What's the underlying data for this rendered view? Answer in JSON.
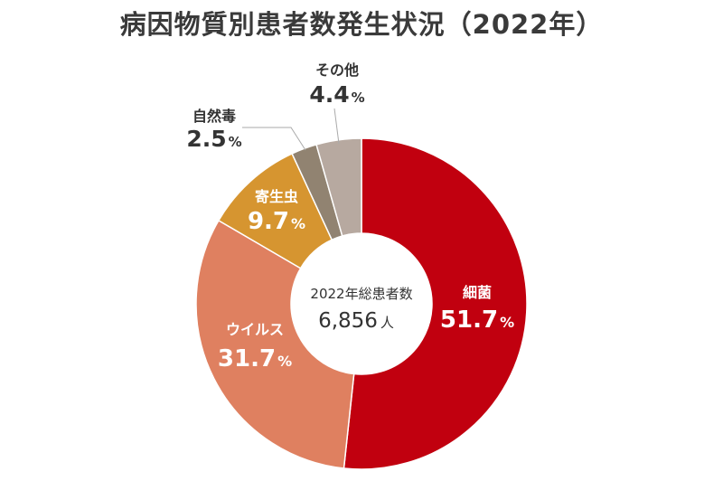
{
  "title": "病因物質別患者数発生状況（2022年）",
  "center": {
    "label": "2022年総患者数",
    "value": "6,856",
    "unit": "人"
  },
  "colors": {
    "bacteria": "#c1000f",
    "virus": "#df8060",
    "parasite": "#d69530",
    "natural_toxin": "#918371",
    "other": "#b7a9a0",
    "leader_line": "#aaaaaa",
    "text_dark": "#333333"
  },
  "chart_data": {
    "type": "pie",
    "title": "病因物質別患者数発生状況（2022年）",
    "unit": "%",
    "categories": [
      "細菌",
      "ウイルス",
      "寄生虫",
      "自然毒",
      "その他"
    ],
    "values": [
      51.7,
      31.7,
      9.7,
      2.5,
      4.4
    ],
    "value_labels": [
      "51.7",
      "31.7",
      "9.7",
      "2.5",
      "4.4"
    ],
    "center_label": "2022年総患者数",
    "center_value": "6,856",
    "center_unit": "人",
    "start": "12 o'clock",
    "direction": "clockwise"
  }
}
